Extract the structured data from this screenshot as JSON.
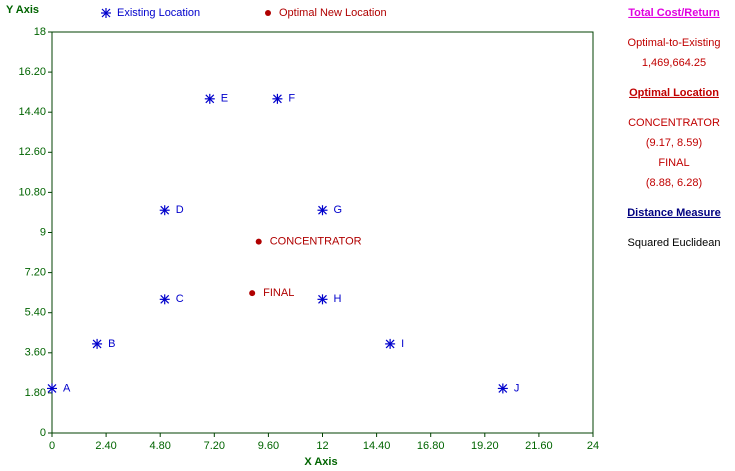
{
  "chart_data": {
    "type": "scatter",
    "y_label": "Y Axis",
    "x_label": "X Axis",
    "xlim": [
      0,
      24
    ],
    "xticks": [
      0,
      {
        "value": 2.4,
        "label": "2.40"
      },
      {
        "value": 4.8,
        "label": "4.80"
      },
      {
        "value": 7.2,
        "label": "7.20"
      },
      {
        "value": 9.6,
        "label": "9.60"
      },
      12,
      {
        "value": 14.4,
        "label": "14.40"
      },
      {
        "value": 16.8,
        "label": "16.80"
      },
      {
        "value": 19.2,
        "label": "19.20"
      },
      {
        "value": 21.6,
        "label": "21.60"
      },
      24
    ],
    "ylim": [
      0,
      18
    ],
    "yticks": [
      0,
      {
        "value": 1.8,
        "label": "1.80"
      },
      {
        "value": 3.6,
        "label": "3.60"
      },
      {
        "value": 5.4,
        "label": "5.40"
      },
      {
        "value": 7.2,
        "label": "7.20"
      },
      9,
      {
        "value": 10.8,
        "label": "10.80"
      },
      {
        "value": 12.6,
        "label": "12.60"
      },
      {
        "value": 14.4,
        "label": "14.40"
      },
      {
        "value": 16.2,
        "label": "16.20"
      },
      18
    ],
    "series": [
      {
        "name": "Existing Location",
        "color": "#0000cc",
        "marker": "asterisk",
        "labels": [
          "A",
          "B",
          "C",
          "D",
          "E",
          "F",
          "G",
          "H",
          "I",
          "J"
        ],
        "x": [
          0,
          2,
          5,
          5,
          7,
          10,
          12,
          12,
          15,
          20
        ],
        "values": [
          2,
          4,
          6,
          10,
          15,
          15,
          10,
          6,
          4,
          2
        ]
      },
      {
        "name": "Optimal New Location",
        "color": "#b00000",
        "marker": "dot",
        "labels": [
          "CONCENTRATOR",
          "FINAL"
        ],
        "x": [
          9.17,
          8.88
        ],
        "values": [
          8.59,
          6.28
        ]
      }
    ]
  },
  "panel": {
    "cost_heading": "Total Cost/Return",
    "cost_label": "Optimal-to-Existing",
    "cost_value": "1,469,664.25",
    "location_heading": "Optimal Location",
    "locations": [
      {
        "name": "CONCENTRATOR",
        "coords": "(9.17, 8.59)"
      },
      {
        "name": "FINAL",
        "coords": "(8.88, 6.28)"
      }
    ],
    "distance_heading": "Distance Measure",
    "distance_value": "Squared Euclidean"
  }
}
